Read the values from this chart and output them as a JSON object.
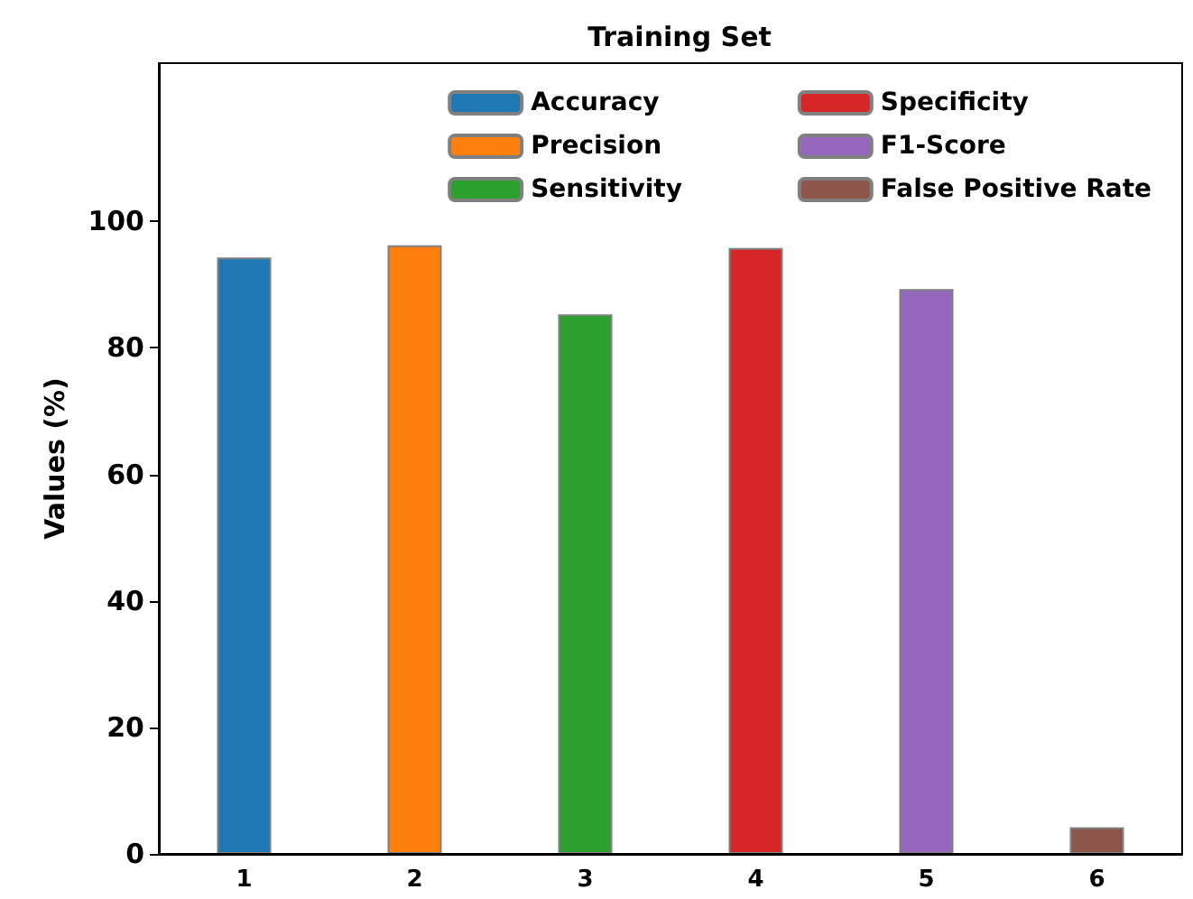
{
  "chart_data": {
    "type": "bar",
    "title": "Training Set",
    "ylabel": "Values (%)",
    "categories": [
      "1",
      "2",
      "3",
      "4",
      "5",
      "6"
    ],
    "series": [
      {
        "name": "Accuracy",
        "color": "#1f77b4",
        "values": [
          94.3,
          null,
          null,
          null,
          null,
          null
        ]
      },
      {
        "name": "Precision",
        "color": "#ff7f0e",
        "values": [
          null,
          96.2,
          null,
          null,
          null,
          null
        ]
      },
      {
        "name": "Sensitivity",
        "color": "#2ca02c",
        "values": [
          null,
          null,
          85.3,
          null,
          null,
          null
        ]
      },
      {
        "name": "Specificity",
        "color": "#d62728",
        "values": [
          null,
          null,
          null,
          95.8,
          null,
          null
        ]
      },
      {
        "name": "F1-Score",
        "color": "#9467bd",
        "values": [
          null,
          null,
          null,
          null,
          89.3,
          null
        ]
      },
      {
        "name": "False Positive Rate",
        "color": "#8c564b",
        "values": [
          null,
          null,
          null,
          null,
          null,
          4.2
        ]
      }
    ],
    "ylim": [
      0,
      125
    ],
    "yticks": [
      0,
      20,
      40,
      60,
      80,
      100
    ],
    "grid": false,
    "legend": "top right"
  }
}
